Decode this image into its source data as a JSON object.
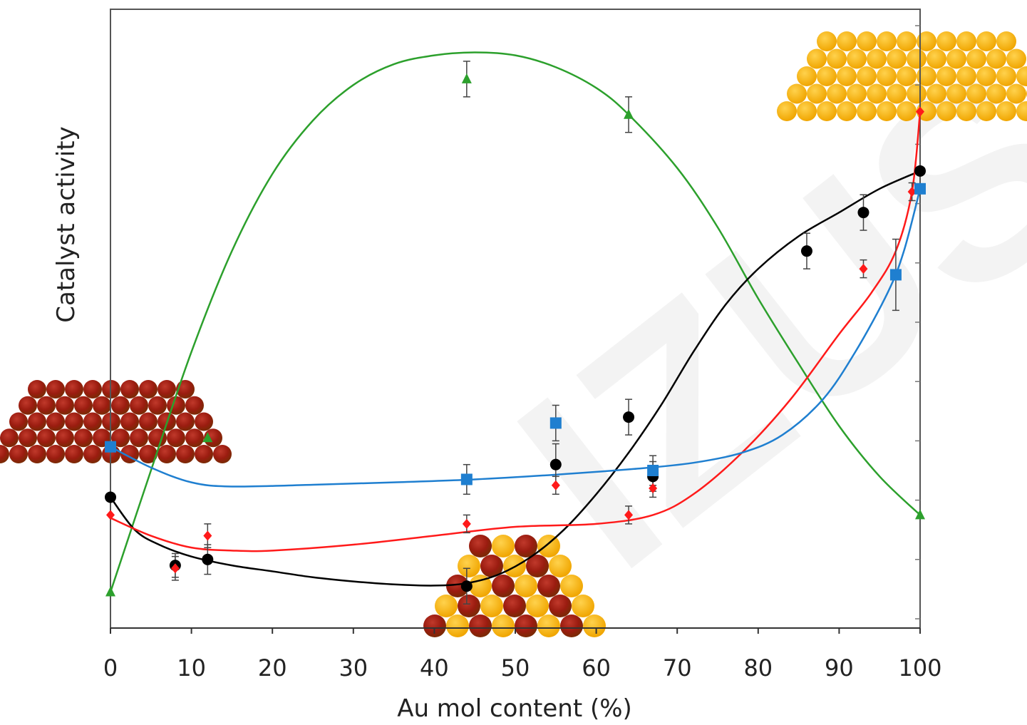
{
  "chart_data": {
    "type": "scatter",
    "title": "",
    "xlabel": "Au mol content (%)",
    "ylabel": "Catalyst activity",
    "xlim": [
      0,
      100
    ],
    "ylim": [
      0,
      100
    ],
    "y_tick_labels_shown": false,
    "x_ticks": [
      0,
      10,
      20,
      30,
      40,
      50,
      60,
      70,
      80,
      90,
      100
    ],
    "grid": false,
    "legend": "none",
    "watermark": "IZUSA",
    "series": [
      {
        "color": "#2ca02c",
        "marker": "triangle",
        "points": [
          [
            0,
            4.5
          ],
          [
            12,
            30.5
          ],
          [
            44,
            91
          ],
          [
            64,
            85
          ],
          [
            100,
            17.5
          ]
        ],
        "errors": [
          0,
          0,
          3,
          3,
          0
        ],
        "curve": [
          [
            0,
            4.5
          ],
          [
            5,
            25
          ],
          [
            10,
            45
          ],
          [
            15,
            62
          ],
          [
            20,
            75
          ],
          [
            25,
            84
          ],
          [
            30,
            90
          ],
          [
            35,
            93.5
          ],
          [
            40,
            95
          ],
          [
            45,
            95.5
          ],
          [
            50,
            95
          ],
          [
            55,
            93
          ],
          [
            60,
            89.5
          ],
          [
            64,
            85
          ],
          [
            70,
            76
          ],
          [
            75,
            66
          ],
          [
            80,
            54
          ],
          [
            85,
            43
          ],
          [
            90,
            32.5
          ],
          [
            95,
            24
          ],
          [
            100,
            17.5
          ]
        ]
      },
      {
        "color": "#000000",
        "marker": "circle",
        "points": [
          [
            0,
            20.5
          ],
          [
            8,
            9
          ],
          [
            12,
            10
          ],
          [
            44,
            5.5
          ],
          [
            55,
            26
          ],
          [
            64,
            34
          ],
          [
            67,
            24
          ],
          [
            86,
            62
          ],
          [
            93,
            68.5
          ],
          [
            100,
            75.5
          ]
        ],
        "errors": [
          0,
          2,
          2.5,
          3,
          3.5,
          3,
          2.5,
          3,
          3,
          0
        ],
        "curve": [
          [
            0,
            20.5
          ],
          [
            3,
            15
          ],
          [
            6,
            12.5
          ],
          [
            10,
            10.5
          ],
          [
            15,
            9
          ],
          [
            20,
            8
          ],
          [
            25,
            7
          ],
          [
            30,
            6.3
          ],
          [
            35,
            5.8
          ],
          [
            40,
            5.6
          ],
          [
            44,
            6
          ],
          [
            48,
            7.5
          ],
          [
            52,
            10.5
          ],
          [
            56,
            15
          ],
          [
            60,
            21
          ],
          [
            64,
            28
          ],
          [
            68,
            36
          ],
          [
            72,
            45
          ],
          [
            76,
            53
          ],
          [
            80,
            59
          ],
          [
            85,
            64.5
          ],
          [
            90,
            68.5
          ],
          [
            95,
            72.5
          ],
          [
            100,
            75.5
          ]
        ]
      },
      {
        "color": "#ff1a1a",
        "marker": "diamond",
        "points": [
          [
            0,
            17.5
          ],
          [
            8,
            8.5
          ],
          [
            12,
            14
          ],
          [
            44,
            16
          ],
          [
            55,
            22.5
          ],
          [
            64,
            17.5
          ],
          [
            67,
            22
          ],
          [
            93,
            59
          ],
          [
            99,
            72
          ],
          [
            100,
            85.5
          ]
        ],
        "errors": [
          0,
          2,
          2,
          1.5,
          1.5,
          1.5,
          1.5,
          1.5,
          1.5,
          0
        ],
        "curve": [
          [
            0,
            17
          ],
          [
            5,
            14
          ],
          [
            10,
            12
          ],
          [
            15,
            11.5
          ],
          [
            20,
            11.5
          ],
          [
            30,
            12.5
          ],
          [
            40,
            14
          ],
          [
            50,
            15.5
          ],
          [
            60,
            16
          ],
          [
            67,
            17.5
          ],
          [
            72,
            21
          ],
          [
            78,
            28
          ],
          [
            84,
            37
          ],
          [
            90,
            48
          ],
          [
            94,
            55
          ],
          [
            97,
            62
          ],
          [
            99,
            72
          ],
          [
            100,
            85.5
          ]
        ]
      },
      {
        "color": "#1f7fd0",
        "marker": "square",
        "points": [
          [
            0,
            29
          ],
          [
            44,
            23.5
          ],
          [
            55,
            33
          ],
          [
            67,
            25
          ],
          [
            97,
            58
          ],
          [
            100,
            72.5
          ]
        ],
        "errors": [
          0,
          2.5,
          3,
          2.5,
          6,
          0
        ],
        "curve": [
          [
            0,
            29
          ],
          [
            5,
            25.5
          ],
          [
            10,
            23
          ],
          [
            15,
            22.3
          ],
          [
            25,
            22.6
          ],
          [
            35,
            23
          ],
          [
            45,
            23.5
          ],
          [
            55,
            24.3
          ],
          [
            65,
            25.3
          ],
          [
            72,
            26.3
          ],
          [
            78,
            28
          ],
          [
            83,
            31
          ],
          [
            88,
            37
          ],
          [
            92,
            45
          ],
          [
            96,
            55
          ],
          [
            98,
            62
          ],
          [
            100,
            72.5
          ]
        ]
      }
    ],
    "annotations": [
      {
        "text": "",
        "kind": "particle-copper",
        "anchor": "x=0 left"
      },
      {
        "text": "",
        "kind": "particle-alloy",
        "anchor": "x=50 bottom"
      },
      {
        "text": "",
        "kind": "particle-gold",
        "anchor": "x=100 top-right"
      }
    ]
  }
}
